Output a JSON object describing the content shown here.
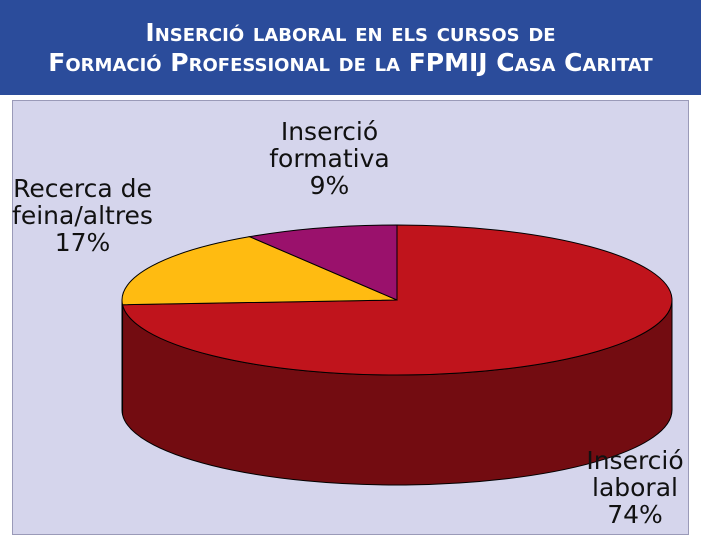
{
  "chart_data": {
    "type": "pie",
    "title": "Inserció laboral en els cursos de\nFormació Professional de la FPMIJ Casa Caritat",
    "categories": [
      "Inserció laboral",
      "Recerca de feina/altres",
      "Inserció formativa"
    ],
    "values": [
      74,
      17,
      9
    ],
    "value_labels": [
      "74%",
      "17%",
      "9%"
    ],
    "colors": [
      "#c0141c",
      "#ffbb11",
      "#9a116c"
    ]
  }
}
